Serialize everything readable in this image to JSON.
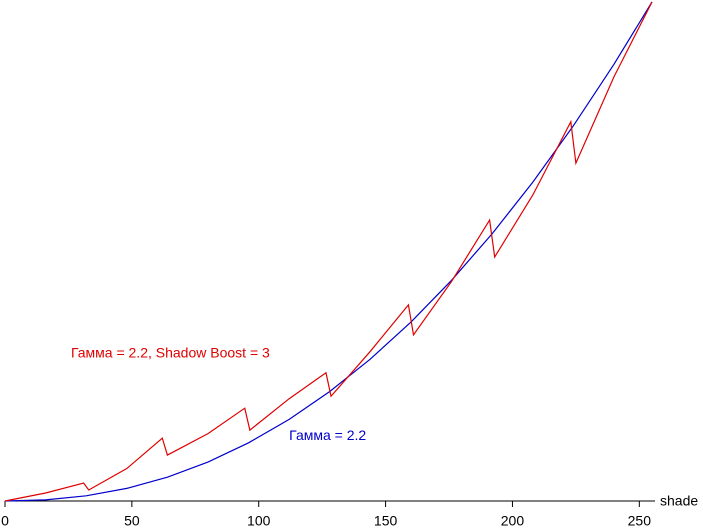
{
  "chart_data": {
    "type": "line",
    "xlabel": "shade",
    "xlim": [
      0,
      255
    ],
    "ylim": [
      0,
      1
    ],
    "xticks": [
      0,
      50,
      100,
      150,
      200,
      250
    ],
    "series": [
      {
        "name": "Гамма = 2.2",
        "color": "#0000cc",
        "x": [
          0,
          16,
          32,
          48,
          64,
          80,
          96,
          112,
          128,
          144,
          160,
          176,
          192,
          208,
          224,
          240,
          255
        ],
        "values": [
          0,
          0.0023,
          0.0104,
          0.0253,
          0.0478,
          0.0781,
          0.1166,
          0.1636,
          0.2195,
          0.2845,
          0.3587,
          0.4423,
          0.5356,
          0.6388,
          0.7519,
          0.8751,
          1
        ]
      },
      {
        "name": "Гамма = 2.2, Shadow Boost = 3",
        "color": "#e00000",
        "x": [
          0,
          16,
          31,
          33,
          48,
          62,
          64,
          80,
          94.5,
          96.5,
          112,
          126.5,
          128.5,
          144,
          159,
          161,
          176,
          191,
          193,
          208,
          223,
          225,
          240,
          255
        ],
        "values": [
          0,
          0.016,
          0.036,
          0.022,
          0.065,
          0.126,
          0.092,
          0.135,
          0.186,
          0.142,
          0.205,
          0.257,
          0.21,
          0.3,
          0.393,
          0.333,
          0.44,
          0.563,
          0.489,
          0.613,
          0.76,
          0.677,
          0.85,
          1
        ]
      }
    ],
    "annotations": [
      {
        "text": "Гамма = 2.2, Shadow Boost = 3",
        "color": "#e00000",
        "x": 26,
        "y": 0.295
      },
      {
        "text": "Гамма = 2.2",
        "color": "#0000cc",
        "x": 112,
        "y": 0.13
      }
    ]
  }
}
